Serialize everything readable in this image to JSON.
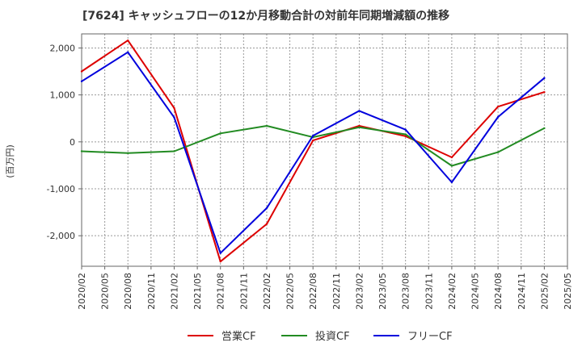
{
  "chart_data": {
    "type": "line",
    "title": "[7624]  キャッシュフローの12か月移動合計の対前年同期増減額の推移",
    "ylabel": "(百万円)",
    "xlabel": "",
    "x_ticks": [
      "2020/02",
      "2020/05",
      "2020/08",
      "2020/11",
      "2021/02",
      "2021/05",
      "2021/08",
      "2021/11",
      "2022/02",
      "2022/05",
      "2022/08",
      "2022/11",
      "2023/02",
      "2023/05",
      "2023/08",
      "2023/11",
      "2024/02",
      "2024/05",
      "2024/08",
      "2024/11",
      "2025/02",
      "2025/05"
    ],
    "y_ticks": [
      2000,
      1000,
      0,
      -1000,
      -2000
    ],
    "y_tick_labels": [
      "2,000",
      "1,000",
      "0",
      "-1,000",
      "-2,000"
    ],
    "ylim": [
      -2650,
      2300
    ],
    "grid": true,
    "legend_position": "bottom",
    "series": [
      {
        "name": "営業CF",
        "color": "#dd0000",
        "points": [
          {
            "x": "2020/02",
            "y": 1500
          },
          {
            "x": "2020/08",
            "y": 2160
          },
          {
            "x": "2021/02",
            "y": 720
          },
          {
            "x": "2021/08",
            "y": -2550
          },
          {
            "x": "2022/02",
            "y": -1750
          },
          {
            "x": "2022/08",
            "y": 30
          },
          {
            "x": "2023/02",
            "y": 340
          },
          {
            "x": "2023/08",
            "y": 120
          },
          {
            "x": "2024/02",
            "y": -330
          },
          {
            "x": "2024/08",
            "y": 750
          },
          {
            "x": "2025/02",
            "y": 1060
          }
        ]
      },
      {
        "name": "投資CF",
        "color": "#228b22",
        "points": [
          {
            "x": "2020/02",
            "y": -200
          },
          {
            "x": "2020/08",
            "y": -240
          },
          {
            "x": "2021/02",
            "y": -200
          },
          {
            "x": "2021/08",
            "y": 180
          },
          {
            "x": "2022/02",
            "y": 340
          },
          {
            "x": "2022/08",
            "y": 100
          },
          {
            "x": "2023/02",
            "y": 310
          },
          {
            "x": "2023/08",
            "y": 160
          },
          {
            "x": "2024/02",
            "y": -510
          },
          {
            "x": "2024/08",
            "y": -220
          },
          {
            "x": "2025/02",
            "y": 290
          }
        ]
      },
      {
        "name": "フリーCF",
        "color": "#0000dd",
        "points": [
          {
            "x": "2020/02",
            "y": 1290
          },
          {
            "x": "2020/08",
            "y": 1910
          },
          {
            "x": "2021/02",
            "y": 520
          },
          {
            "x": "2021/08",
            "y": -2370
          },
          {
            "x": "2022/02",
            "y": -1410
          },
          {
            "x": "2022/08",
            "y": 130
          },
          {
            "x": "2023/02",
            "y": 660
          },
          {
            "x": "2023/08",
            "y": 260
          },
          {
            "x": "2024/02",
            "y": -860
          },
          {
            "x": "2024/08",
            "y": 530
          },
          {
            "x": "2025/02",
            "y": 1360
          }
        ]
      }
    ]
  }
}
